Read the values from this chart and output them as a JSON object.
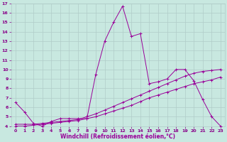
{
  "title": "",
  "xlabel": "Windchill (Refroidissement éolien,°C)",
  "ylabel": "",
  "bg_color": "#c8e8e0",
  "line_color": "#990099",
  "grid_color": "#b0ccc8",
  "xlim": [
    -0.5,
    23.5
  ],
  "ylim": [
    4,
    17
  ],
  "xticks": [
    0,
    1,
    2,
    3,
    4,
    5,
    6,
    7,
    8,
    9,
    10,
    11,
    12,
    13,
    14,
    15,
    16,
    17,
    18,
    19,
    20,
    21,
    22,
    23
  ],
  "yticks": [
    4,
    5,
    6,
    7,
    8,
    9,
    10,
    11,
    12,
    13,
    14,
    15,
    16,
    17
  ],
  "line1_x": [
    0,
    1,
    2,
    3,
    4,
    5,
    6,
    7,
    8,
    9,
    10,
    11,
    12,
    13,
    14,
    15,
    16,
    17,
    18,
    19,
    20,
    21,
    22,
    23
  ],
  "line1_y": [
    6.5,
    5.5,
    4.3,
    4.0,
    4.5,
    4.8,
    4.8,
    4.8,
    4.8,
    9.5,
    13.0,
    15.0,
    16.7,
    13.5,
    13.8,
    8.5,
    8.7,
    9.0,
    10.0,
    10.0,
    8.8,
    6.8,
    5.0,
    4.0
  ],
  "line2_x": [
    0,
    1,
    2,
    3,
    4,
    5,
    6,
    7,
    8,
    9,
    10,
    11,
    12,
    13,
    14,
    15,
    16,
    17,
    18,
    19,
    20,
    21,
    22,
    23
  ],
  "line2_y": [
    4.2,
    4.2,
    4.2,
    4.3,
    4.4,
    4.5,
    4.6,
    4.7,
    5.0,
    5.3,
    5.7,
    6.1,
    6.5,
    6.9,
    7.3,
    7.7,
    8.1,
    8.5,
    8.9,
    9.3,
    9.6,
    9.8,
    9.9,
    10.0
  ],
  "line3_x": [
    0,
    1,
    2,
    3,
    4,
    5,
    6,
    7,
    8,
    9,
    10,
    11,
    12,
    13,
    14,
    15,
    16,
    17,
    18,
    19,
    20,
    21,
    22,
    23
  ],
  "line3_y": [
    4.0,
    4.0,
    4.1,
    4.2,
    4.3,
    4.4,
    4.5,
    4.6,
    4.8,
    5.0,
    5.3,
    5.6,
    5.9,
    6.2,
    6.6,
    7.0,
    7.3,
    7.6,
    7.9,
    8.2,
    8.5,
    8.7,
    8.9,
    9.2
  ]
}
